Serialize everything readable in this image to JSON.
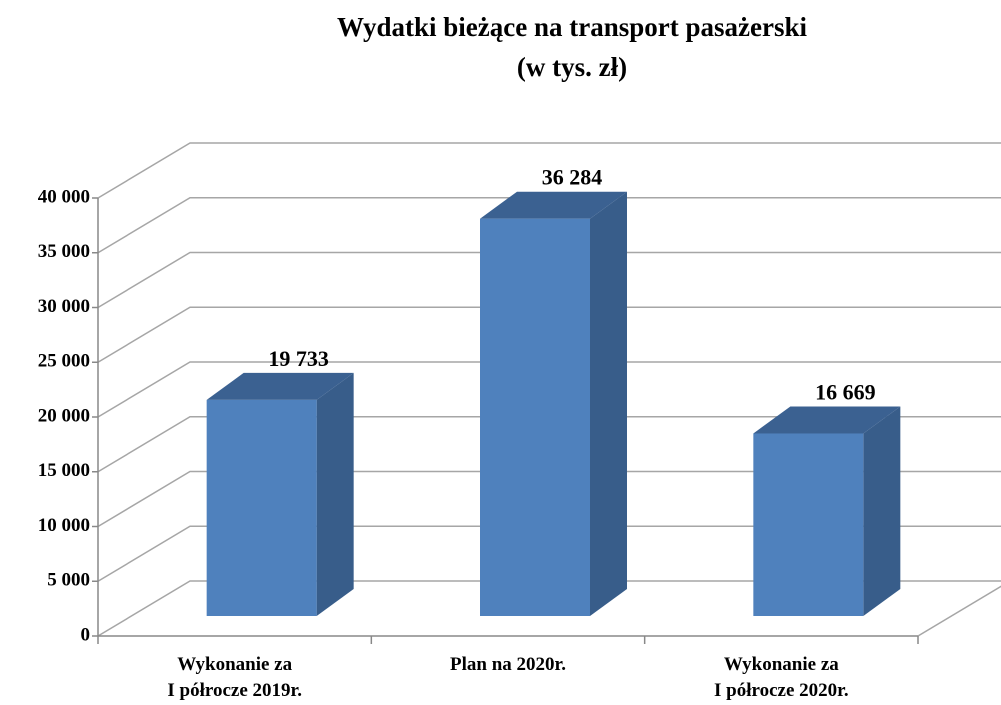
{
  "chart_data": {
    "type": "bar3d",
    "title": "Wydatki bieżące na transport pasażerski",
    "subtitle": "(w tys. zł)",
    "categories": [
      "Wykonanie za\nI półrocze 2019r.",
      "Plan na 2020r.",
      "Wykonanie za\nI półrocze 2020r."
    ],
    "values": [
      19733,
      36284,
      16669
    ],
    "value_labels": [
      "19 733",
      "36 284",
      "16 669"
    ],
    "color": "#4f81bd",
    "ylim": [
      0,
      40000
    ],
    "yticks": [
      0,
      {
        "value": 5000,
        "label": "5 000"
      },
      {
        "value": 10000,
        "label": "10 000"
      },
      {
        "value": 15000,
        "label": "15 000"
      },
      {
        "value": 20000,
        "label": "20 000"
      },
      {
        "value": 25000,
        "label": "25 000"
      },
      {
        "value": 30000,
        "label": "30 000"
      },
      {
        "value": 35000,
        "label": "35 000"
      },
      {
        "value": 40000,
        "label": "40 000"
      }
    ],
    "grid": true
  }
}
